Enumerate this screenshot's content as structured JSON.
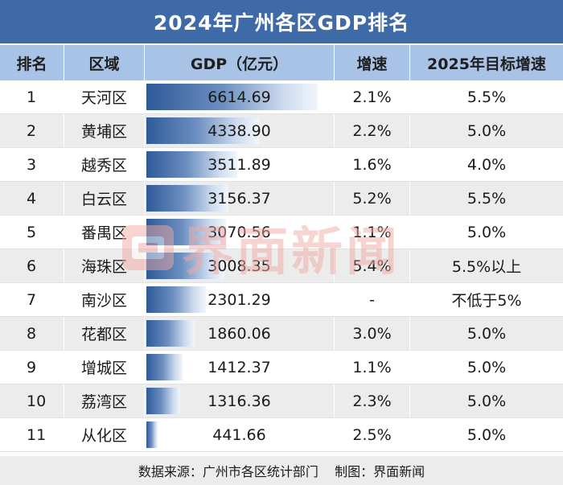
{
  "title": "2024年广州各区GDP排名",
  "headers": [
    "排名",
    "区域",
    "GDP（亿元）",
    "增速",
    "2025年目标增速"
  ],
  "chart_data": {
    "type": "table",
    "title": "2024年广州各区GDP排名",
    "columns": [
      "排名",
      "区域",
      "GDP（亿元）",
      "增速",
      "2025年目标增速"
    ],
    "rows": [
      {
        "rank": "1",
        "district": "天河区",
        "gdp": 6614.69,
        "gdp_text": "6614.69",
        "growth": "2.1%",
        "target": "5.5%"
      },
      {
        "rank": "2",
        "district": "黄埔区",
        "gdp": 4338.9,
        "gdp_text": "4338.90",
        "growth": "2.2%",
        "target": "5.0%"
      },
      {
        "rank": "3",
        "district": "越秀区",
        "gdp": 3511.89,
        "gdp_text": "3511.89",
        "growth": "1.6%",
        "target": "4.0%"
      },
      {
        "rank": "4",
        "district": "白云区",
        "gdp": 3156.37,
        "gdp_text": "3156.37",
        "growth": "5.2%",
        "target": "5.5%"
      },
      {
        "rank": "5",
        "district": "番禺区",
        "gdp": 3070.56,
        "gdp_text": "3070.56",
        "growth": "1.1%",
        "target": "5.0%"
      },
      {
        "rank": "6",
        "district": "海珠区",
        "gdp": 3008.35,
        "gdp_text": "3008.35",
        "growth": "5.4%",
        "target": "5.5%以上"
      },
      {
        "rank": "7",
        "district": "南沙区",
        "gdp": 2301.29,
        "gdp_text": "2301.29",
        "growth": "-",
        "target": "不低于5%"
      },
      {
        "rank": "8",
        "district": "花都区",
        "gdp": 1860.06,
        "gdp_text": "1860.06",
        "growth": "3.0%",
        "target": "5.0%"
      },
      {
        "rank": "9",
        "district": "增城区",
        "gdp": 1412.37,
        "gdp_text": "1412.37",
        "growth": "1.1%",
        "target": "5.0%"
      },
      {
        "rank": "10",
        "district": "荔湾区",
        "gdp": 1316.36,
        "gdp_text": "1316.36",
        "growth": "2.3%",
        "target": "5.0%"
      },
      {
        "rank": "11",
        "district": "从化区",
        "gdp": 441.66,
        "gdp_text": "441.66",
        "growth": "2.5%",
        "target": "5.0%"
      }
    ]
  },
  "footer": "数据来源：广州市各区统计部门    制图：界面新闻",
  "watermark": "界面新闻",
  "colors": {
    "title_bg": "#3f6aa8",
    "header_bg": "#a9c3e6",
    "bar": "#2e5a98",
    "alt_row": "#ececec",
    "watermark": "#f1a9a4"
  }
}
